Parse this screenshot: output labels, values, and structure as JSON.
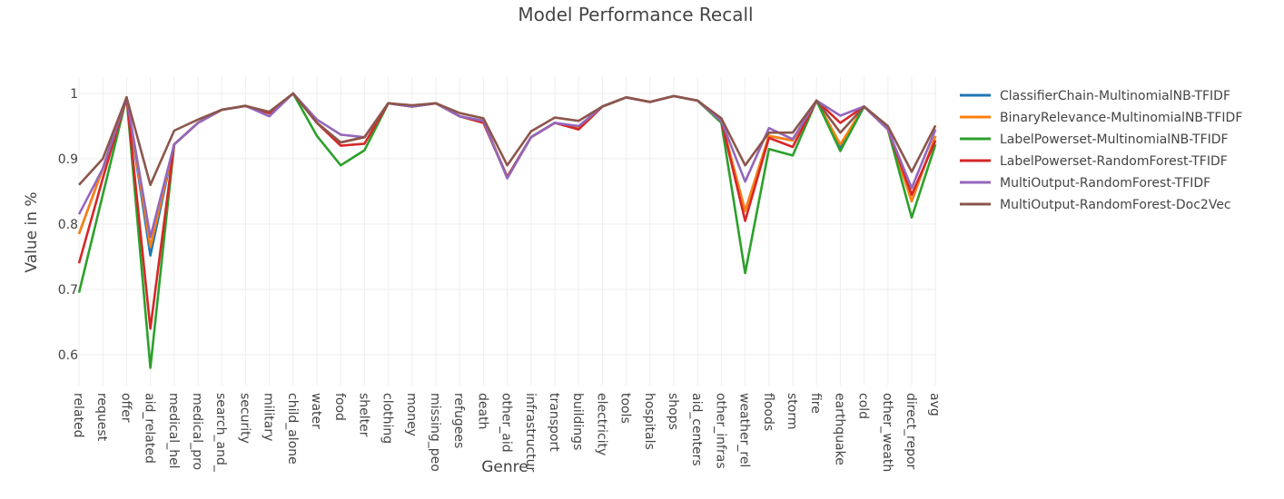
{
  "chart_data": {
    "type": "line",
    "title": "Model Performance Recall",
    "xlabel": "Genre",
    "ylabel": "Value in %",
    "ylim": [
      0.55,
      1.02
    ],
    "yticks": [
      0.6,
      0.7,
      0.8,
      0.9,
      1
    ],
    "ytick_labels": [
      "0.6",
      "0.7",
      "0.8",
      "0.9",
      "1"
    ],
    "grid": true,
    "legend_position": "top-right",
    "categories": [
      "related",
      "request",
      "offer",
      "aid_related",
      "medical_hel",
      "medical_pro",
      "search_and_",
      "security",
      "military",
      "child_alone",
      "water",
      "food",
      "shelter",
      "clothing",
      "money",
      "missing_peo",
      "refugees",
      "death",
      "other_aid",
      "infrastructur",
      "transport",
      "buildings",
      "electricity",
      "tools",
      "hospitals",
      "shops",
      "aid_centers",
      "other_infras",
      "weather_rel",
      "floods",
      "storm",
      "fire",
      "earthquake",
      "cold",
      "other_weath",
      "direct_repor",
      "avg"
    ],
    "series": [
      {
        "name": "ClassifierChain-MultinomialNB-TFIDF",
        "color": "#1f77b4",
        "values": [
          0.785,
          0.885,
          0.994,
          0.752,
          0.922,
          0.955,
          0.975,
          0.981,
          0.97,
          1.0,
          0.955,
          0.925,
          0.933,
          0.985,
          0.98,
          0.985,
          0.965,
          0.958,
          0.872,
          0.933,
          0.955,
          0.948,
          0.98,
          0.994,
          0.987,
          0.996,
          0.989,
          0.958,
          0.82,
          0.935,
          0.928,
          0.989,
          0.918,
          0.98,
          0.945,
          0.835,
          0.935
        ]
      },
      {
        "name": "BinaryRelevance-MultinomialNB-TFIDF",
        "color": "#ff7f0e",
        "values": [
          0.785,
          0.885,
          0.994,
          0.765,
          0.922,
          0.955,
          0.975,
          0.981,
          0.97,
          1.0,
          0.955,
          0.925,
          0.933,
          0.985,
          0.98,
          0.985,
          0.965,
          0.958,
          0.872,
          0.933,
          0.955,
          0.948,
          0.98,
          0.994,
          0.987,
          0.996,
          0.989,
          0.958,
          0.82,
          0.935,
          0.928,
          0.989,
          0.922,
          0.98,
          0.945,
          0.835,
          0.935
        ]
      },
      {
        "name": "LabelPowerset-MultinomialNB-TFIDF",
        "color": "#2ca02c",
        "values": [
          0.695,
          0.845,
          0.994,
          0.58,
          0.922,
          0.955,
          0.975,
          0.981,
          0.97,
          1.0,
          0.935,
          0.89,
          0.913,
          0.985,
          0.98,
          0.985,
          0.965,
          0.955,
          0.872,
          0.933,
          0.955,
          0.945,
          0.98,
          0.994,
          0.987,
          0.996,
          0.989,
          0.955,
          0.725,
          0.915,
          0.905,
          0.989,
          0.912,
          0.98,
          0.945,
          0.81,
          0.922
        ]
      },
      {
        "name": "LabelPowerset-RandomForest-TFIDF",
        "color": "#d62728",
        "values": [
          0.74,
          0.87,
          0.994,
          0.64,
          0.922,
          0.955,
          0.975,
          0.981,
          0.97,
          1.0,
          0.955,
          0.92,
          0.923,
          0.985,
          0.98,
          0.985,
          0.965,
          0.955,
          0.872,
          0.933,
          0.955,
          0.945,
          0.98,
          0.994,
          0.987,
          0.996,
          0.989,
          0.958,
          0.805,
          0.932,
          0.918,
          0.989,
          0.955,
          0.98,
          0.945,
          0.845,
          0.928
        ]
      },
      {
        "name": "MultiOutput-RandomForest-TFIDF",
        "color": "#9467bd",
        "values": [
          0.815,
          0.885,
          0.994,
          0.78,
          0.922,
          0.955,
          0.975,
          0.981,
          0.965,
          1.0,
          0.96,
          0.937,
          0.933,
          0.985,
          0.98,
          0.985,
          0.965,
          0.958,
          0.87,
          0.933,
          0.955,
          0.95,
          0.98,
          0.994,
          0.987,
          0.996,
          0.989,
          0.958,
          0.865,
          0.947,
          0.93,
          0.989,
          0.966,
          0.98,
          0.945,
          0.855,
          0.945
        ]
      },
      {
        "name": "MultiOutput-RandomForest-Doc2Vec",
        "color": "#8c564b",
        "values": [
          0.86,
          0.9,
          0.994,
          0.86,
          0.943,
          0.96,
          0.975,
          0.981,
          0.972,
          1.0,
          0.955,
          0.925,
          0.933,
          0.985,
          0.982,
          0.985,
          0.97,
          0.962,
          0.89,
          0.942,
          0.963,
          0.958,
          0.98,
          0.994,
          0.987,
          0.996,
          0.989,
          0.962,
          0.89,
          0.94,
          0.94,
          0.989,
          0.94,
          0.98,
          0.95,
          0.88,
          0.951
        ]
      }
    ]
  }
}
